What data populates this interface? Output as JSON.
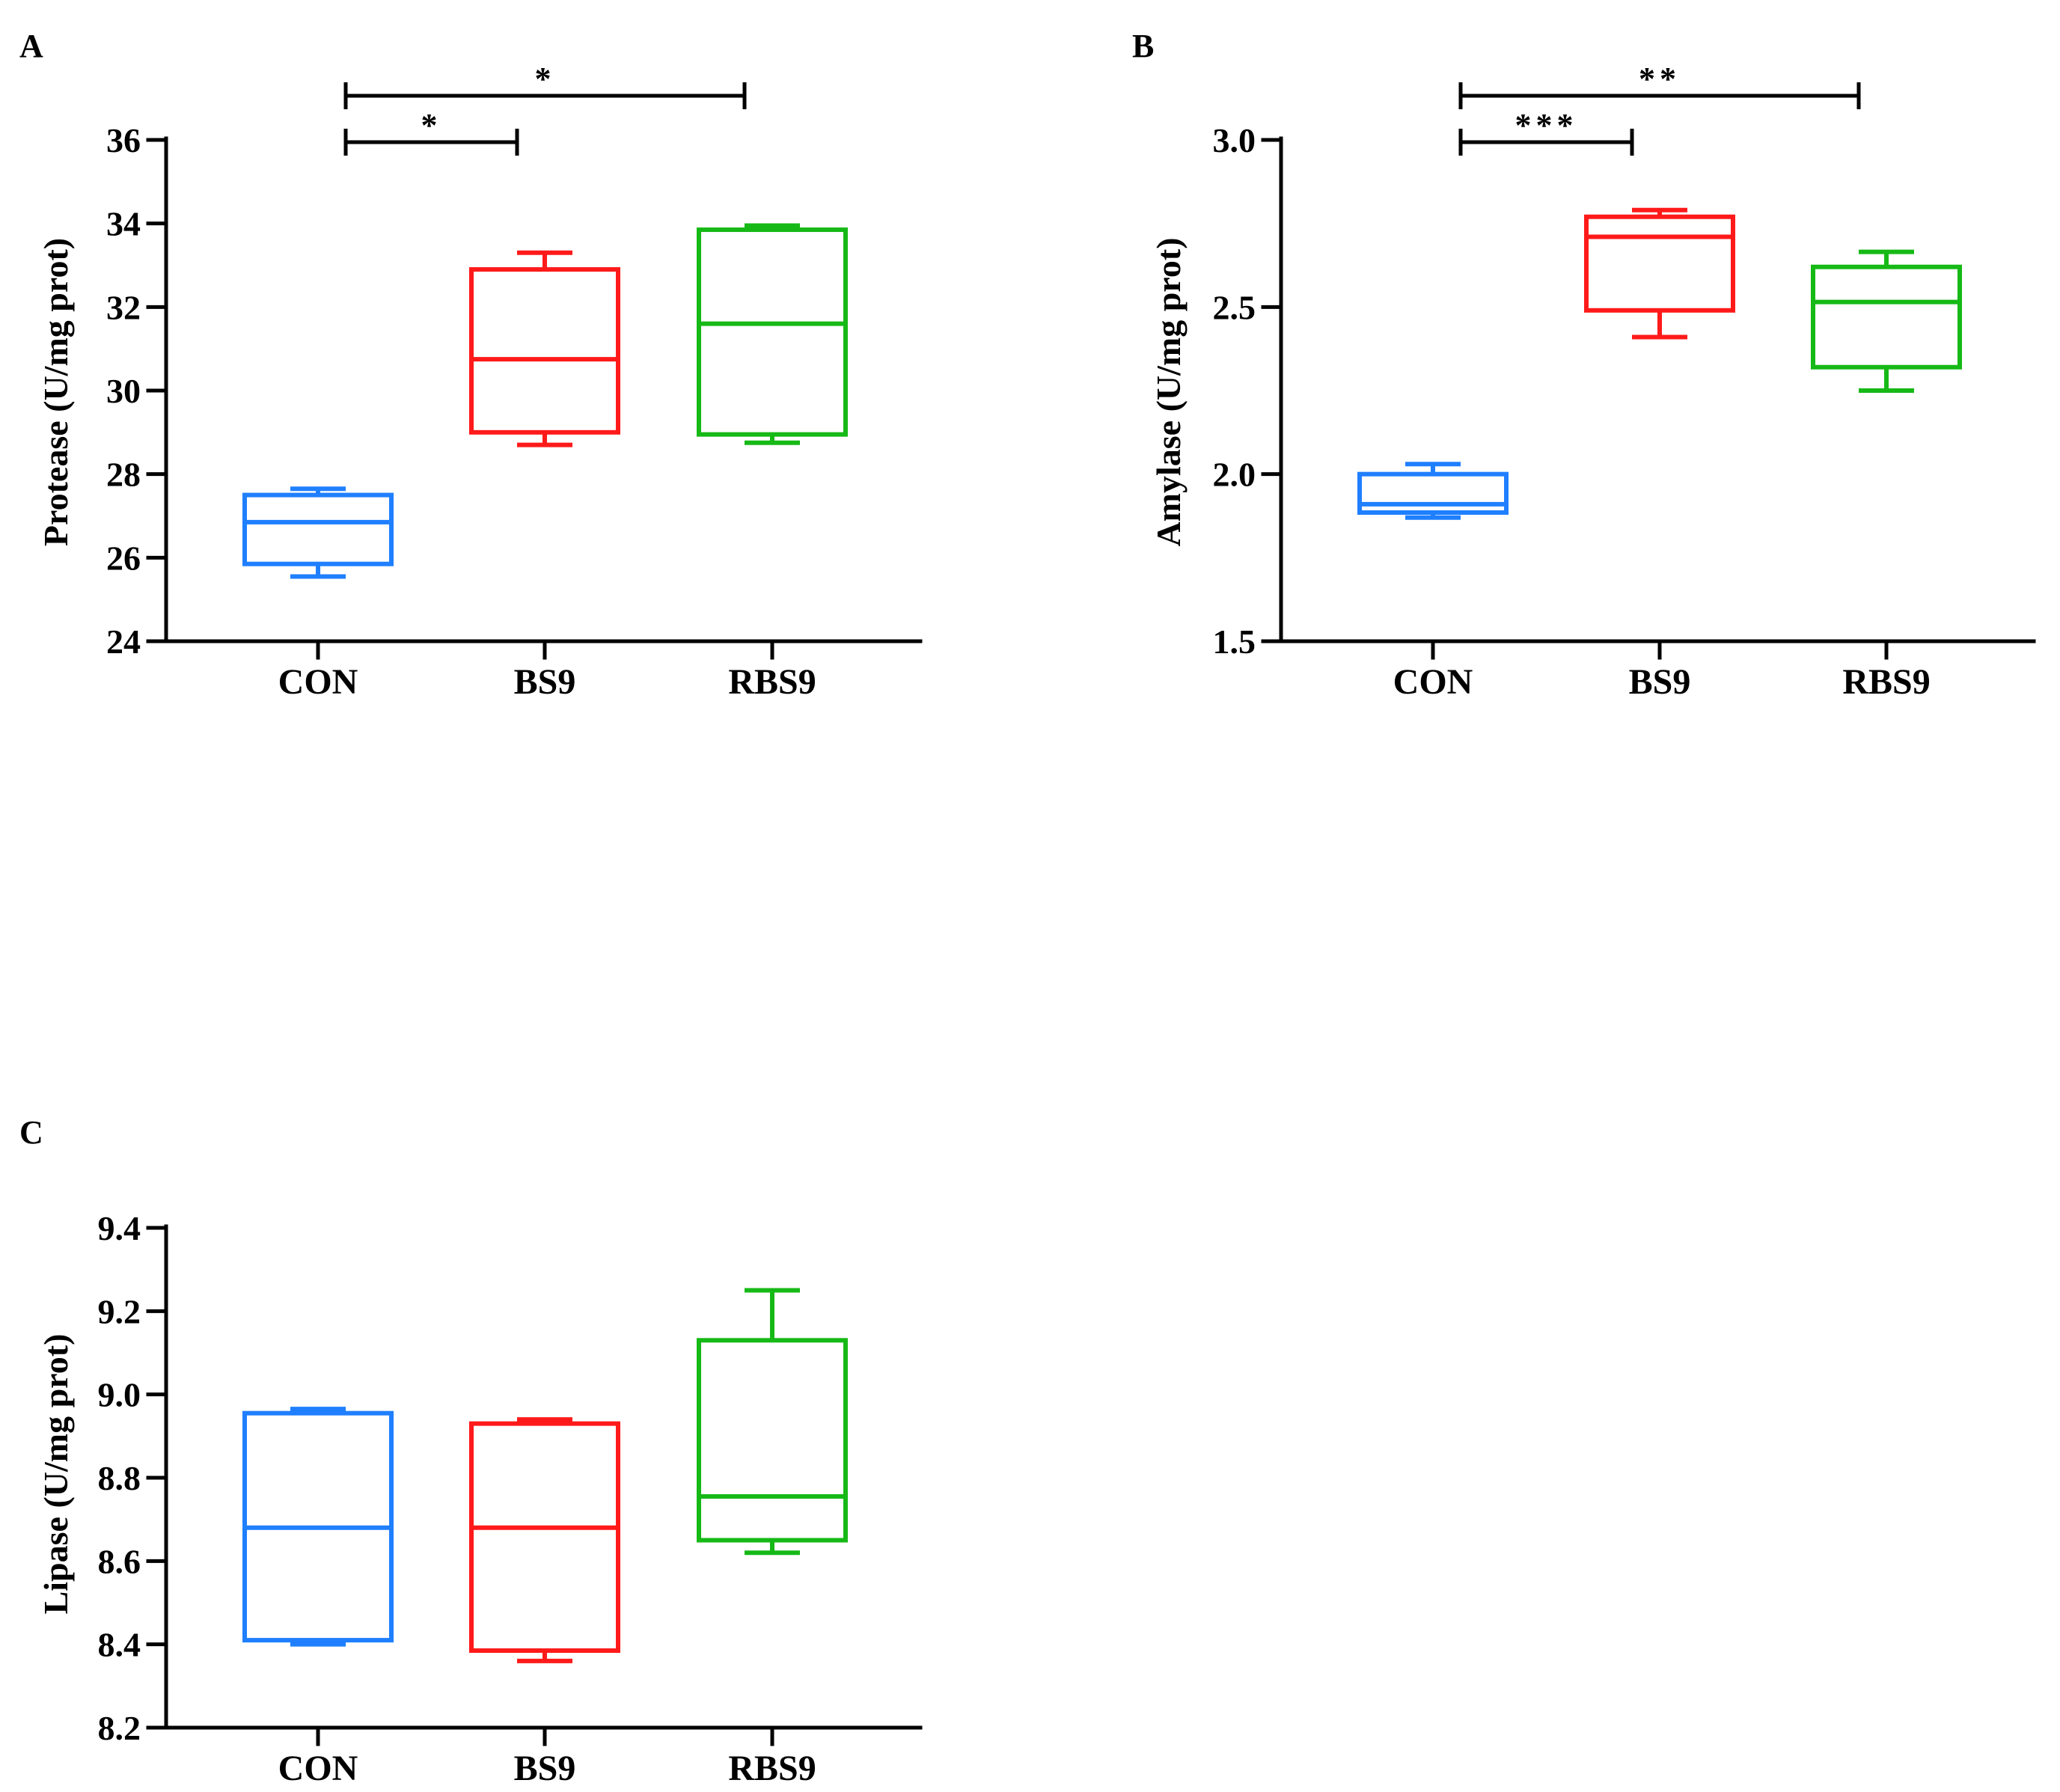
{
  "figure": {
    "panels": [
      "A",
      "B",
      "C"
    ]
  },
  "chart_data": [
    {
      "panel": "A",
      "type": "box",
      "ylabel": "Protease (U/mg prot)",
      "ylim": [
        24,
        36
      ],
      "yticks": [
        24,
        26,
        28,
        30,
        32,
        34,
        36
      ],
      "ytick_labels": [
        "24",
        "26",
        "28",
        "30",
        "32",
        "34",
        "36"
      ],
      "categories": [
        "CON",
        "BS9",
        "RBS9"
      ],
      "colors": [
        "#1f7fff",
        "#ff1a1a",
        "#16b916"
      ],
      "boxes": [
        {
          "name": "CON",
          "min": 25.55,
          "q1": 25.85,
          "median": 26.85,
          "q3": 27.5,
          "max": 27.65
        },
        {
          "name": "BS9",
          "min": 28.7,
          "q1": 29.0,
          "median": 30.75,
          "q3": 32.9,
          "max": 33.3
        },
        {
          "name": "RBS9",
          "min": 28.75,
          "q1": 28.95,
          "median": 31.6,
          "q3": 33.85,
          "max": 33.95
        }
      ],
      "significance": [
        {
          "from": 0,
          "to": 1,
          "label": "*",
          "level": 1
        },
        {
          "from": 0,
          "to": 2,
          "label": "*",
          "level": 2
        }
      ]
    },
    {
      "panel": "B",
      "type": "box",
      "ylabel": "Amylase (U/mg prot)",
      "ylim": [
        1.5,
        3.0
      ],
      "yticks": [
        1.5,
        2.0,
        2.5,
        3.0
      ],
      "ytick_labels": [
        "1.5",
        "2.0",
        "2.5",
        "3.0"
      ],
      "categories": [
        "CON",
        "BS9",
        "RBS9"
      ],
      "colors": [
        "#1f7fff",
        "#ff1a1a",
        "#16b916"
      ],
      "boxes": [
        {
          "name": "CON",
          "min": 1.87,
          "q1": 1.885,
          "median": 1.91,
          "q3": 2.0,
          "max": 2.03
        },
        {
          "name": "BS9",
          "min": 2.41,
          "q1": 2.49,
          "median": 2.71,
          "q3": 2.77,
          "max": 2.79
        },
        {
          "name": "RBS9",
          "min": 2.25,
          "q1": 2.32,
          "median": 2.515,
          "q3": 2.62,
          "max": 2.665
        }
      ],
      "significance": [
        {
          "from": 0,
          "to": 1,
          "label": "***",
          "level": 1
        },
        {
          "from": 0,
          "to": 2,
          "label": "**",
          "level": 2
        }
      ]
    },
    {
      "panel": "C",
      "type": "box",
      "ylabel": "Lipase (U/mg prot)",
      "ylim": [
        8.2,
        9.4
      ],
      "yticks": [
        8.2,
        8.4,
        8.6,
        8.8,
        9.0,
        9.2,
        9.4
      ],
      "ytick_labels": [
        "8.2",
        "8.4",
        "8.6",
        "8.8",
        "9.0",
        "9.2",
        "9.4"
      ],
      "categories": [
        "CON",
        "BS9",
        "RBS9"
      ],
      "colors": [
        "#1f7fff",
        "#ff1a1a",
        "#16b916"
      ],
      "boxes": [
        {
          "name": "CON",
          "min": 8.4,
          "q1": 8.41,
          "median": 8.68,
          "q3": 8.955,
          "max": 8.965
        },
        {
          "name": "BS9",
          "min": 8.36,
          "q1": 8.385,
          "median": 8.68,
          "q3": 8.93,
          "max": 8.94
        },
        {
          "name": "RBS9",
          "min": 8.62,
          "q1": 8.65,
          "median": 8.755,
          "q3": 9.13,
          "max": 9.25
        }
      ],
      "significance": []
    }
  ]
}
